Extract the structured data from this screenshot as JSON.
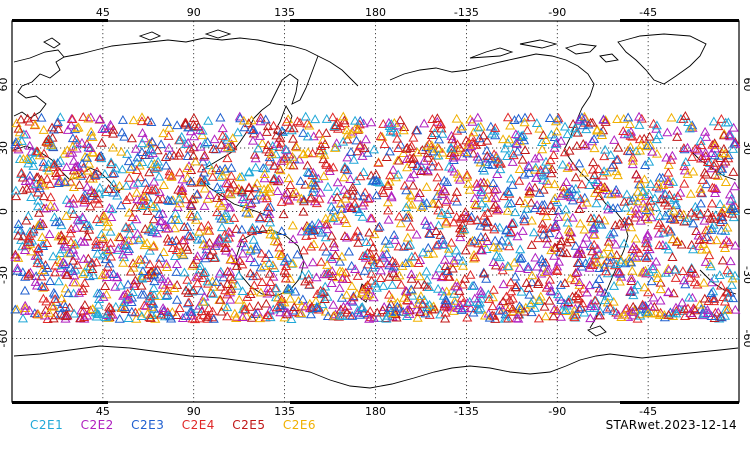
{
  "map": {
    "projection": "cylindrical equidistant, centered on 180",
    "grid": true,
    "top_lon_labels": [
      "45",
      "90",
      "135",
      "180",
      "-135",
      "-90",
      "-45"
    ],
    "bottom_lon_labels": [
      "45",
      "90",
      "135",
      "180",
      "-135",
      "-90",
      "-45"
    ],
    "lat_labels": [
      "60",
      "30",
      "0",
      "-30",
      "-60"
    ],
    "marker_shape": "triangle-outline",
    "marker_lat_range": [
      -45,
      45
    ],
    "marker_count_approx": 3000
  },
  "legend": {
    "items": [
      {
        "label": "C2E1",
        "color": "#20a8d8"
      },
      {
        "label": "C2E2",
        "color": "#b020c0"
      },
      {
        "label": "C2E3",
        "color": "#2060d0"
      },
      {
        "label": "C2E4",
        "color": "#e02828"
      },
      {
        "label": "C2E5",
        "color": "#c01818"
      },
      {
        "label": "C2E6",
        "color": "#f0b000"
      }
    ]
  },
  "stamp": "STARwet.2023-12-14"
}
